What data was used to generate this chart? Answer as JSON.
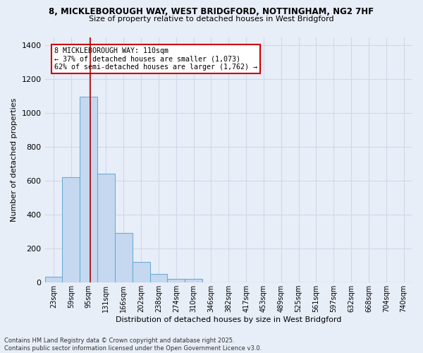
{
  "title_line1": "8, MICKLEBOROUGH WAY, WEST BRIDGFORD, NOTTINGHAM, NG2 7HF",
  "title_line2": "Size of property relative to detached houses in West Bridgford",
  "xlabel": "Distribution of detached houses by size in West Bridgford",
  "ylabel": "Number of detached properties",
  "categories": [
    "23sqm",
    "59sqm",
    "95sqm",
    "131sqm",
    "166sqm",
    "202sqm",
    "238sqm",
    "274sqm",
    "310sqm",
    "346sqm",
    "382sqm",
    "417sqm",
    "453sqm",
    "489sqm",
    "525sqm",
    "561sqm",
    "597sqm",
    "632sqm",
    "668sqm",
    "704sqm",
    "740sqm"
  ],
  "values": [
    30,
    620,
    1095,
    640,
    290,
    120,
    47,
    20,
    20,
    0,
    0,
    0,
    0,
    0,
    0,
    0,
    0,
    0,
    0,
    0,
    0
  ],
  "bar_color": "#c5d8f0",
  "bar_edge_color": "#6aaed6",
  "background_color": "#e8eef8",
  "grid_color": "#d0d8e8",
  "vline_color": "#aa0000",
  "vline_x_index": 2,
  "annotation_text": "8 MICKLEBOROUGH WAY: 110sqm\n← 37% of detached houses are smaller (1,073)\n62% of semi-detached houses are larger (1,762) →",
  "annotation_box_facecolor": "white",
  "annotation_box_edgecolor": "#cc0000",
  "ylim_min": 0,
  "ylim_max": 1450,
  "yticks": [
    0,
    200,
    400,
    600,
    800,
    1000,
    1200,
    1400
  ],
  "footer_line1": "Contains HM Land Registry data © Crown copyright and database right 2025.",
  "footer_line2": "Contains public sector information licensed under the Open Government Licence v3.0."
}
